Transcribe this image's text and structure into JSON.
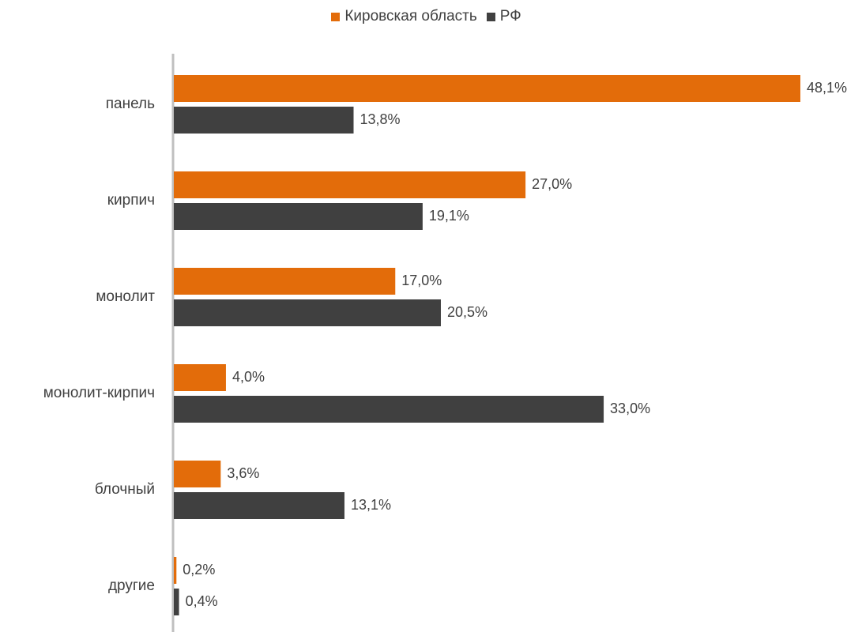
{
  "chart_data": {
    "type": "bar",
    "orientation": "horizontal",
    "categories": [
      "панель",
      "кирпич",
      "монолит",
      "монолит-кирпич",
      "блочный",
      "другие"
    ],
    "series": [
      {
        "name": "Кировская область",
        "color": "#E36C0A",
        "values": [
          48.1,
          27.0,
          17.0,
          4.0,
          3.6,
          0.2
        ],
        "labels": [
          "48,1%",
          "27,0%",
          "17,0%",
          "4,0%",
          "3,6%",
          "0,2%"
        ]
      },
      {
        "name": "РФ",
        "color": "#404040",
        "values": [
          13.8,
          19.1,
          20.5,
          33.0,
          13.1,
          0.4
        ],
        "labels": [
          "13,8%",
          "19,1%",
          "20,5%",
          "33,0%",
          "13,1%",
          "0,4%"
        ]
      }
    ],
    "xlim": [
      0,
      48.1
    ],
    "grid": false,
    "legend_position": "top"
  }
}
